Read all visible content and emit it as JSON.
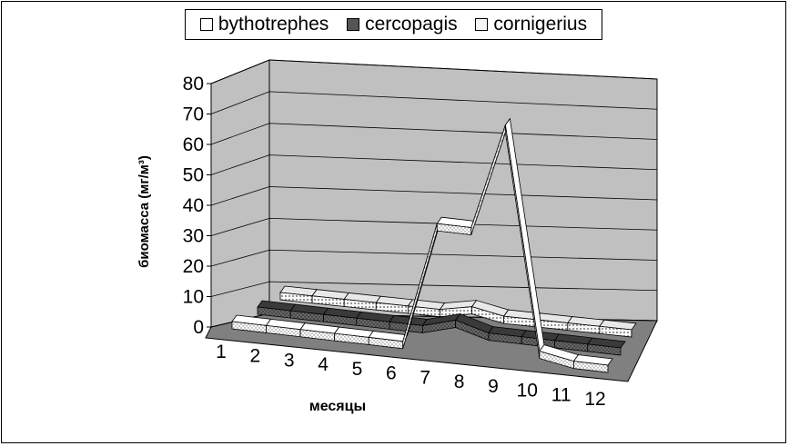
{
  "chart_data": {
    "type": "line",
    "title": "",
    "xlabel": "месяцы",
    "ylabel": "биомасса (мг/м³)",
    "categories": [
      "1",
      "2",
      "3",
      "4",
      "5",
      "6",
      "7",
      "8",
      "9",
      "10",
      "11",
      "12"
    ],
    "yticks": [
      "0",
      "10",
      "20",
      "30",
      "40",
      "50",
      "60",
      "70",
      "80"
    ],
    "ylim": [
      0,
      80
    ],
    "legend_position": "top",
    "style": "3d-ribbon",
    "series": [
      {
        "name": "bythotrephes",
        "values": [
          0,
          0,
          0,
          0,
          0,
          0,
          40,
          40,
          75,
          2,
          0,
          0
        ],
        "color": "#ffffff"
      },
      {
        "name": "cercopagis",
        "values": [
          0,
          0,
          0,
          0,
          0,
          0,
          3,
          0,
          0,
          0,
          0,
          0
        ],
        "color": "#555555"
      },
      {
        "name": "cornigerius",
        "values": [
          0,
          0,
          0,
          0,
          0,
          0,
          2,
          0,
          0,
          0,
          0,
          0
        ],
        "color": "#f4f4f4"
      }
    ]
  }
}
